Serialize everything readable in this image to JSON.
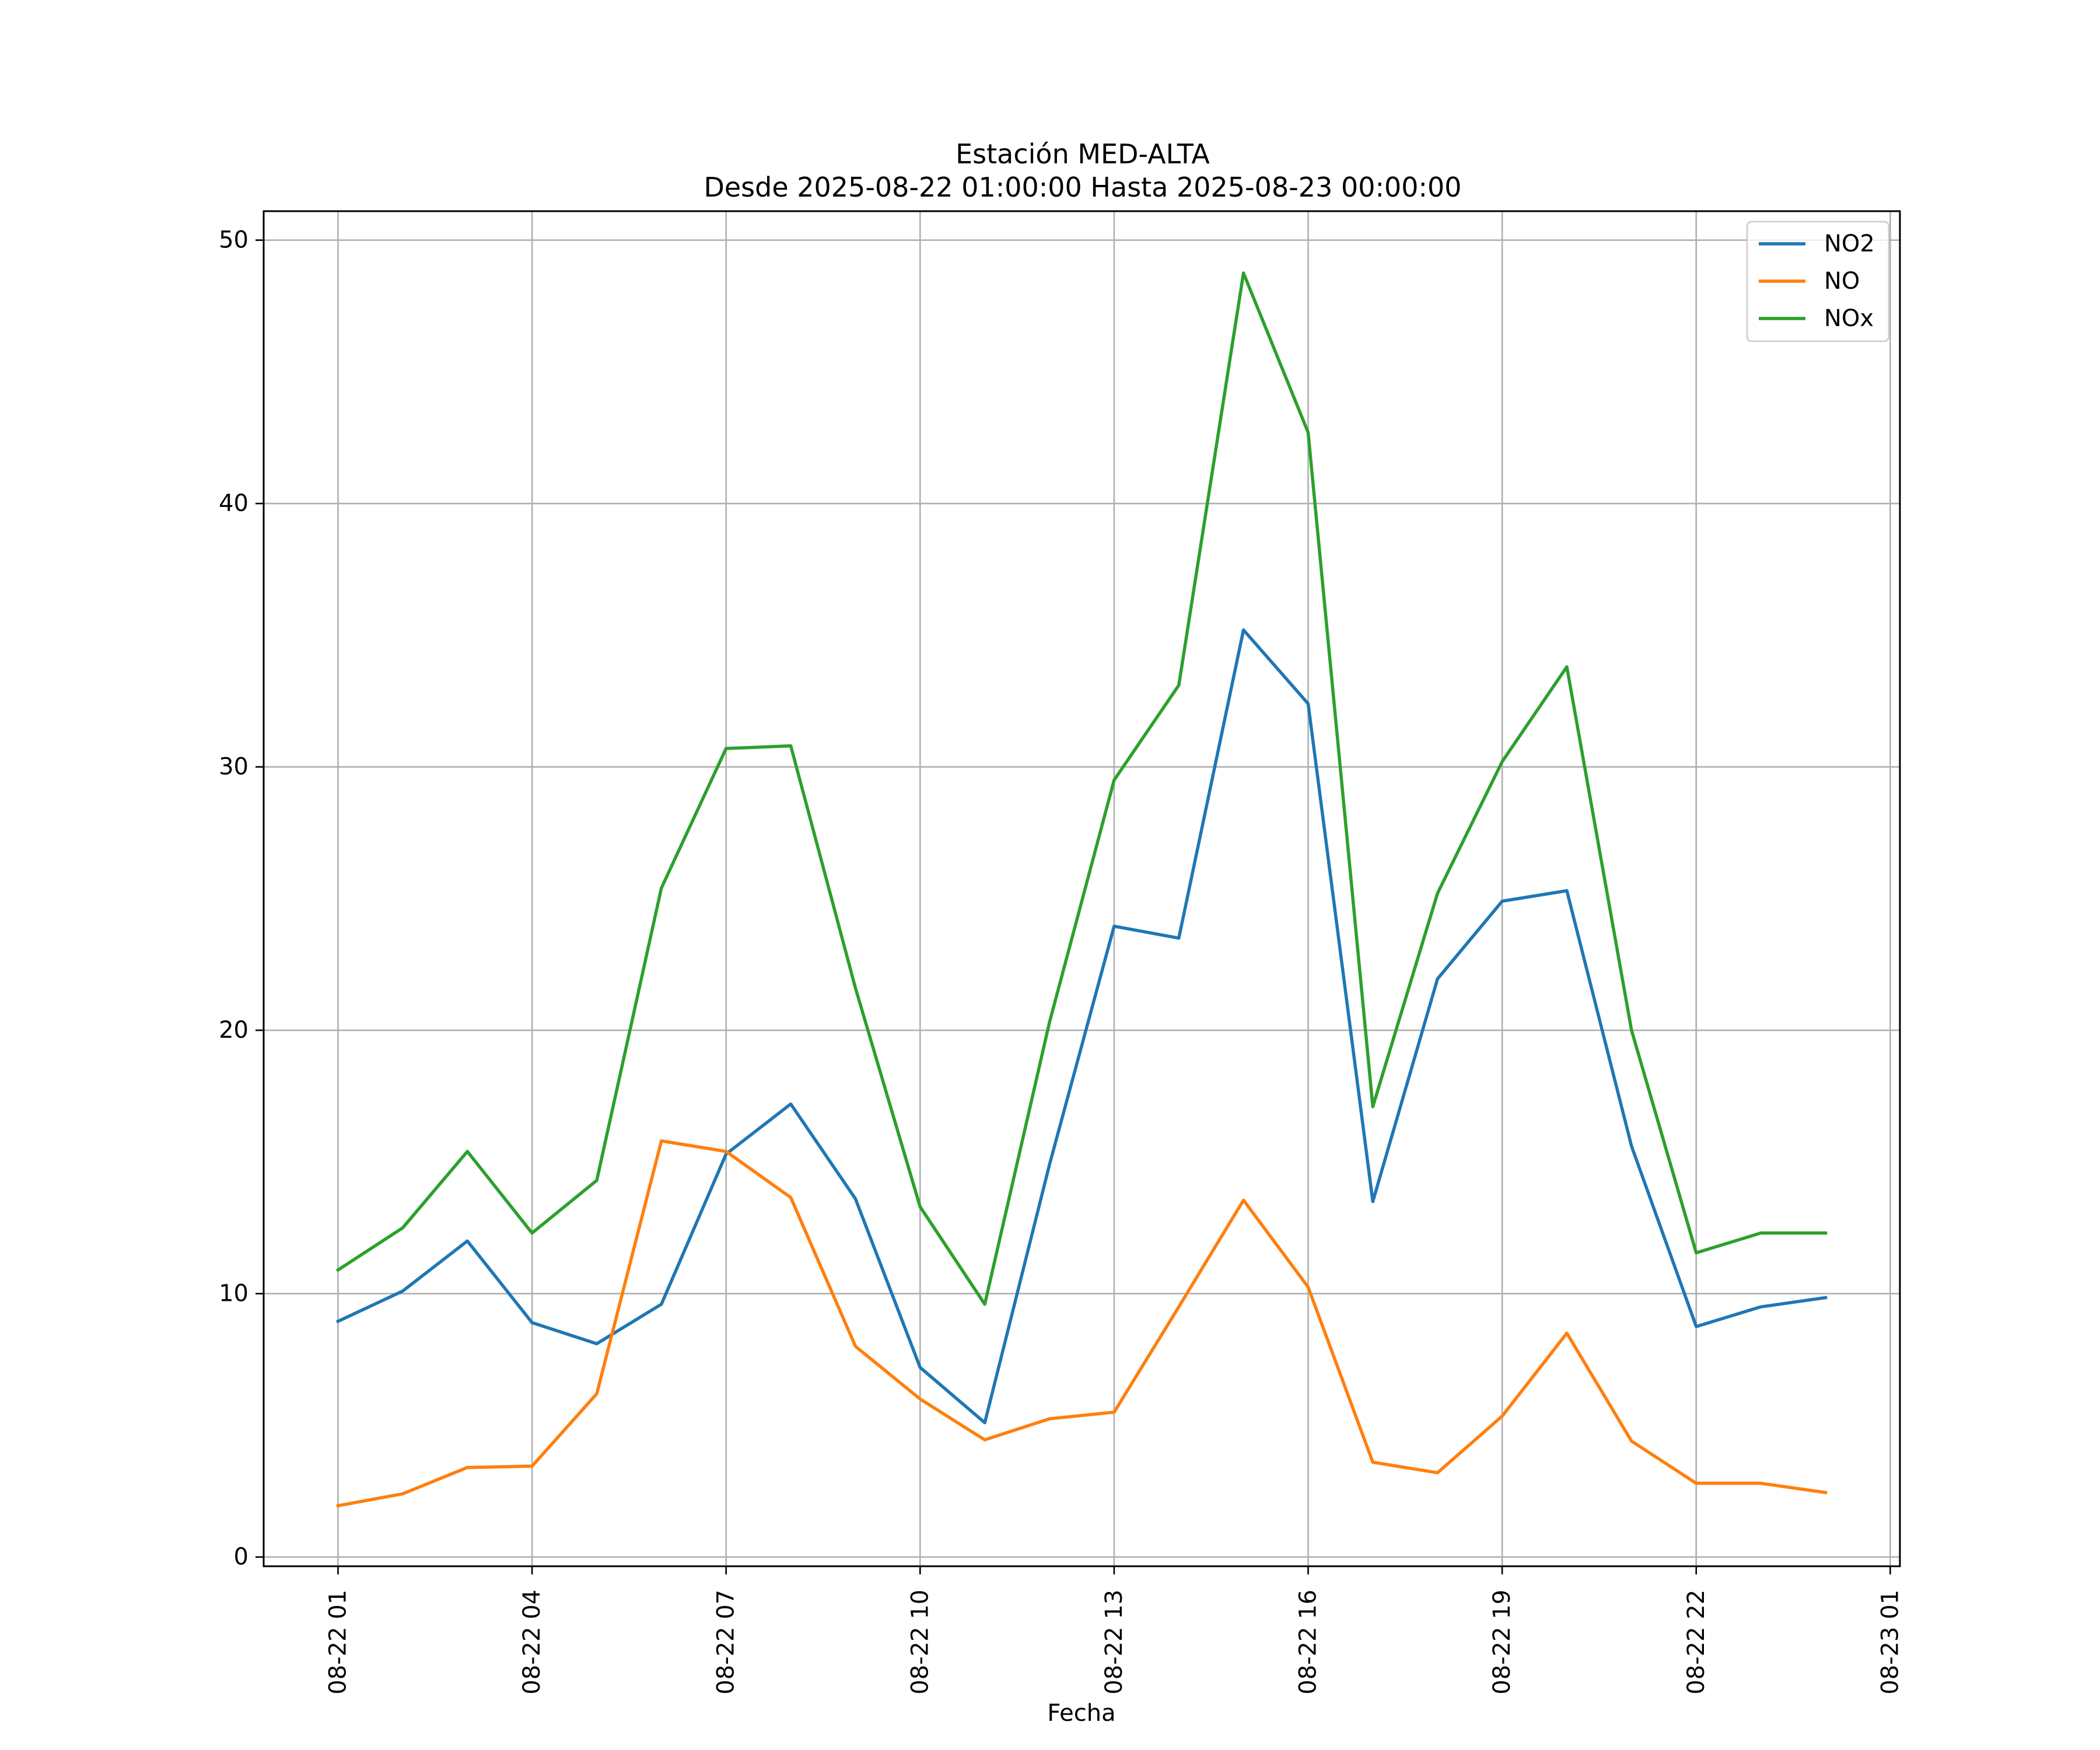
{
  "chart_data": {
    "type": "line",
    "title": "Estación MED-ALTA",
    "subtitle": "Desde 2025-08-22 01:00:00 Hasta 2025-08-23 00:00:00",
    "xlabel": "Fecha",
    "ylabel": "",
    "x": [
      "2025-08-22 01:00",
      "2025-08-22 02:00",
      "2025-08-22 03:00",
      "2025-08-22 04:00",
      "2025-08-22 05:00",
      "2025-08-22 06:00",
      "2025-08-22 07:00",
      "2025-08-22 08:00",
      "2025-08-22 09:00",
      "2025-08-22 10:00",
      "2025-08-22 11:00",
      "2025-08-22 12:00",
      "2025-08-22 13:00",
      "2025-08-22 14:00",
      "2025-08-22 15:00",
      "2025-08-22 16:00",
      "2025-08-22 17:00",
      "2025-08-22 18:00",
      "2025-08-22 19:00",
      "2025-08-22 20:00",
      "2025-08-22 21:00",
      "2025-08-22 22:00",
      "2025-08-22 23:00",
      "2025-08-23 00:00"
    ],
    "xlim": [
      "2025-08-21 23:51",
      "2025-08-23 01:09"
    ],
    "xticks": [
      "2025-08-22 01:00",
      "2025-08-22 04:00",
      "2025-08-22 07:00",
      "2025-08-22 10:00",
      "2025-08-22 13:00",
      "2025-08-22 16:00",
      "2025-08-22 19:00",
      "2025-08-22 22:00",
      "2025-08-23 01:00"
    ],
    "xticklabels": [
      "08-22 01",
      "08-22 04",
      "08-22 07",
      "08-22 10",
      "08-22 13",
      "08-22 16",
      "08-22 19",
      "08-22 22",
      "08-23 01"
    ],
    "ylim": [
      -0.35,
      51.1
    ],
    "yticks": [
      0,
      10,
      20,
      30,
      40,
      50
    ],
    "yticklabels": [
      "0",
      "10",
      "20",
      "30",
      "40",
      "50"
    ],
    "grid": true,
    "legend_position": "top-right",
    "series": [
      {
        "name": "NO2",
        "color": "#1f77b4",
        "values": [
          8.95,
          10.1,
          12.0,
          8.9,
          8.1,
          9.6,
          15.3,
          17.2,
          13.6,
          7.2,
          5.1,
          14.9,
          23.95,
          23.5,
          35.2,
          32.4,
          13.5,
          21.95,
          24.9,
          25.3,
          15.6,
          8.75,
          9.5,
          9.85
        ]
      },
      {
        "name": "NO",
        "color": "#ff7f0e",
        "values": [
          1.95,
          2.4,
          3.4,
          3.45,
          6.2,
          15.8,
          15.4,
          13.65,
          8.0,
          6.0,
          4.45,
          5.25,
          5.5,
          9.5,
          13.55,
          10.25,
          3.6,
          3.2,
          5.35,
          8.5,
          4.4,
          2.8,
          2.8,
          2.45
        ]
      },
      {
        "name": "NOx",
        "color": "#2ca02c",
        "values": [
          10.9,
          12.5,
          15.4,
          12.3,
          14.3,
          25.4,
          30.7,
          30.8,
          21.6,
          13.3,
          9.6,
          20.3,
          29.5,
          33.1,
          48.75,
          42.7,
          17.1,
          25.2,
          30.2,
          33.8,
          20.0,
          11.55,
          12.3,
          12.3
        ]
      }
    ]
  }
}
